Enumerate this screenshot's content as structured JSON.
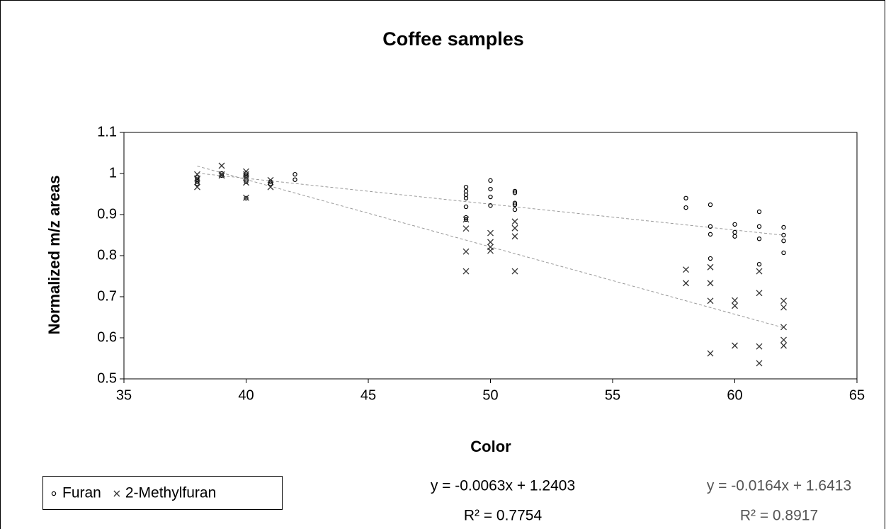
{
  "chart_data": {
    "type": "scatter",
    "title": "Coffee samples",
    "x_label": "Color",
    "y_label": "Normalized m/z areas",
    "xlim": [
      35,
      65
    ],
    "xticks": [
      35,
      40,
      45,
      50,
      55,
      60,
      65
    ],
    "ylim": [
      0.5,
      1.1
    ],
    "yticks": [
      0.5,
      0.6,
      0.7,
      0.8,
      0.9,
      1,
      1.1
    ],
    "series": [
      {
        "name": "Furan",
        "marker": "circle",
        "color": "#000000",
        "x": [
          38,
          38,
          38,
          38,
          39,
          39,
          40,
          40,
          40,
          40,
          40,
          41,
          41,
          42,
          42,
          49,
          49,
          49,
          49,
          49,
          49,
          49,
          50,
          50,
          50,
          50,
          51,
          51,
          51,
          51,
          51,
          58,
          58,
          59,
          59,
          59,
          59,
          60,
          60,
          60,
          61,
          61,
          61,
          61,
          62,
          62,
          62,
          62
        ],
        "values": [
          0.99,
          0.985,
          0.98,
          0.975,
          1.0,
          0.995,
          1.0,
          0.995,
          0.99,
          0.98,
          0.94,
          0.98,
          0.975,
          0.998,
          0.985,
          0.967,
          0.957,
          0.948,
          0.94,
          0.919,
          0.893,
          0.888,
          0.983,
          0.962,
          0.943,
          0.922,
          0.957,
          0.953,
          0.928,
          0.924,
          0.912,
          0.94,
          0.917,
          0.924,
          0.871,
          0.852,
          0.793,
          0.876,
          0.857,
          0.847,
          0.907,
          0.871,
          0.841,
          0.779,
          0.869,
          0.85,
          0.836,
          0.807
        ],
        "trendline": {
          "slope": -0.0063,
          "intercept": 1.2403,
          "equation": "y = -0.0063x + 1.2403",
          "r_squared_label": "R² = 0.7754",
          "label_color": "#000000"
        }
      },
      {
        "name": "2-Methylfuran",
        "marker": "x",
        "color": "#333333",
        "x": [
          38,
          38,
          38,
          39,
          39,
          39,
          40,
          40,
          40,
          40,
          40,
          41,
          41,
          49,
          49,
          49,
          49,
          50,
          50,
          50,
          50,
          51,
          51,
          51,
          51,
          58,
          58,
          59,
          59,
          59,
          59,
          60,
          60,
          60,
          61,
          61,
          61,
          61,
          62,
          62,
          62,
          62,
          62
        ],
        "values": [
          0.998,
          0.988,
          0.967,
          1.019,
          0.998,
          0.995,
          1.005,
          0.998,
          0.99,
          0.978,
          0.941,
          0.984,
          0.967,
          0.888,
          0.866,
          0.81,
          0.762,
          0.855,
          0.833,
          0.821,
          0.812,
          0.883,
          0.867,
          0.847,
          0.762,
          0.766,
          0.733,
          0.772,
          0.733,
          0.69,
          0.562,
          0.691,
          0.678,
          0.581,
          0.762,
          0.709,
          0.579,
          0.538,
          0.69,
          0.674,
          0.626,
          0.595,
          0.581
        ],
        "trendline": {
          "slope": -0.0164,
          "intercept": 1.6413,
          "equation": "y = -0.0164x + 1.6413",
          "r_squared_label": "R² = 0.8917",
          "label_color": "#555555"
        }
      }
    ]
  }
}
